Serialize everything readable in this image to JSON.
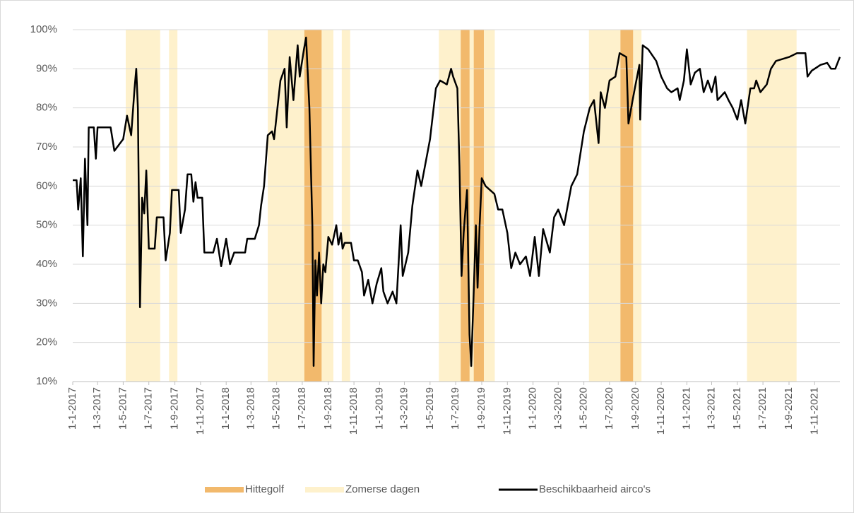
{
  "chart_data": {
    "type": "line",
    "xlim": [
      "1-1-2017",
      "31-12-2021"
    ],
    "xticks": [
      "1-1-2017",
      "1-3-2017",
      "1-5-2017",
      "1-7-2017",
      "1-9-2017",
      "1-11-2017",
      "1-1-2018",
      "1-3-2018",
      "1-5-2018",
      "1-7-2018",
      "1-9-2018",
      "1-11-2018",
      "1-1-2019",
      "1-3-2019",
      "1-5-2019",
      "1-7-2019",
      "1-9-2019",
      "1-11-2019",
      "1-1-2020",
      "1-3-2020",
      "1-5-2020",
      "1-7-2020",
      "1-9-2020",
      "1-11-2020",
      "1-1-2021",
      "1-3-2021",
      "1-5-2021",
      "1-7-2021",
      "1-9-2021",
      "1-11-2021"
    ],
    "ylim": [
      10,
      100
    ],
    "yticks": [
      {
        "value": 10,
        "label": "10%"
      },
      {
        "value": 20,
        "label": "20%"
      },
      {
        "value": 30,
        "label": "30%"
      },
      {
        "value": 40,
        "label": "40%"
      },
      {
        "value": 50,
        "label": "50%"
      },
      {
        "value": 60,
        "label": "60%"
      },
      {
        "value": 70,
        "label": "70%"
      },
      {
        "value": 80,
        "label": "80%"
      },
      {
        "value": 90,
        "label": "90%"
      },
      {
        "value": 100,
        "label": "100%"
      }
    ],
    "grid": true,
    "legend": "bottom",
    "series": [
      {
        "name": "Hittegolf",
        "color": "#f2b96c",
        "periods": [
          [
            "6-7-2018",
            "16-8-2018"
          ],
          [
            "13-7-2019",
            "3-8-2019"
          ],
          [
            "13-8-2019",
            "6-9-2019"
          ],
          [
            "27-7-2020",
            "26-8-2020"
          ]
        ]
      },
      {
        "name": "Zomerse dagen",
        "color": "#fef1cc",
        "periods": [
          [
            "7-5-2017",
            "28-7-2017"
          ],
          [
            "18-8-2017",
            "7-9-2017"
          ],
          [
            "10-4-2018",
            "13-9-2018"
          ],
          [
            "3-10-2018",
            "23-10-2018"
          ],
          [
            "22-5-2019",
            "2-10-2019"
          ],
          [
            "13-5-2020",
            "15-9-2020"
          ],
          [
            "24-5-2021",
            "19-9-2021"
          ]
        ]
      },
      {
        "name": "Beschikbaarheid airco's",
        "color": "#000000",
        "x": [
          "1-1-2017",
          "10-1-2017",
          "14-1-2017",
          "20-1-2017",
          "25-1-2017",
          "30-1-2017",
          "5-2-2017",
          "8-2-2017",
          "20-2-2017",
          "25-2-2017",
          "1-3-2017",
          "1-4-2017",
          "10-4-2017",
          "1-5-2017",
          "10-5-2017",
          "20-5-2017",
          "28-5-2017",
          "1-6-2017",
          "5-6-2017",
          "10-6-2017",
          "15-6-2017",
          "20-6-2017",
          "25-6-2017",
          "1-7-2017",
          "15-7-2017",
          "20-7-2017",
          "5-8-2017",
          "10-8-2017",
          "20-8-2017",
          "25-8-2017",
          "10-9-2017",
          "15-9-2017",
          "25-9-2017",
          "1-10-2017",
          "10-10-2017",
          "15-10-2017",
          "20-10-2017",
          "25-10-2017",
          "5-11-2017",
          "10-11-2017",
          "1-12-2017",
          "10-12-2017",
          "20-12-2017",
          "1-1-2018",
          "10-1-2018",
          "20-1-2018",
          "1-2-2018",
          "15-2-2018",
          "20-2-2018",
          "10-3-2018",
          "20-3-2018",
          "25-3-2018",
          "1-4-2018",
          "10-4-2018",
          "20-4-2018",
          "25-4-2018",
          "10-5-2018",
          "20-5-2018",
          "25-5-2018",
          "1-6-2018",
          "10-6-2018",
          "20-6-2018",
          "25-6-2018",
          "5-7-2018",
          "10-7-2018",
          "18-7-2018",
          "25-7-2018",
          "28-7-2018",
          "1-8-2018",
          "5-8-2018",
          "10-8-2018",
          "15-8-2018",
          "20-8-2018",
          "25-8-2018",
          "1-9-2018",
          "10-9-2018",
          "20-9-2018",
          "25-9-2018",
          "1-10-2018",
          "5-10-2018",
          "10-10-2018",
          "25-10-2018",
          "1-11-2018",
          "10-11-2018",
          "20-11-2018",
          "25-11-2018",
          "5-12-2018",
          "15-12-2018",
          "25-12-2018",
          "5-1-2019",
          "10-1-2019",
          "20-1-2019",
          "1-2-2019",
          "10-2-2019",
          "20-2-2019",
          "25-2-2019",
          "10-3-2019",
          "20-3-2019",
          "1-4-2019",
          "10-4-2019",
          "1-5-2019",
          "15-5-2019",
          "25-5-2019",
          "10-6-2019",
          "20-6-2019",
          "25-6-2019",
          "5-7-2019",
          "10-7-2019",
          "15-7-2019",
          "20-7-2019",
          "25-7-2019",
          "28-7-2019",
          "3-8-2019",
          "7-8-2019",
          "12-8-2019",
          "18-8-2019",
          "22-8-2019",
          "27-8-2019",
          "1-9-2019",
          "10-9-2019",
          "1-10-2019",
          "10-10-2019",
          "20-10-2019",
          "1-11-2019",
          "10-11-2019",
          "20-11-2019",
          "1-12-2019",
          "15-12-2019",
          "25-12-2019",
          "5-1-2020",
          "15-1-2020",
          "25-1-2020",
          "10-2-2020",
          "20-2-2020",
          "1-3-2020",
          "15-3-2020",
          "1-4-2020",
          "15-4-2020",
          "1-5-2020",
          "15-5-2020",
          "25-5-2020",
          "5-6-2020",
          "10-6-2020",
          "20-6-2020",
          "1-7-2020",
          "15-7-2020",
          "25-7-2020",
          "10-8-2020",
          "15-8-2020",
          "25-8-2020",
          "1-9-2020",
          "10-9-2020",
          "12-9-2020",
          "18-9-2020",
          "1-10-2020",
          "20-10-2020",
          "1-11-2020",
          "15-11-2020",
          "25-11-2020",
          "10-12-2020",
          "15-12-2020",
          "25-12-2020",
          "1-1-2021",
          "10-1-2021",
          "20-1-2021",
          "1-2-2021",
          "10-2-2021",
          "20-2-2021",
          "1-3-2021",
          "10-3-2021",
          "15-3-2021",
          "1-4-2021",
          "10-4-2021",
          "20-4-2021",
          "1-5-2021",
          "10-5-2021",
          "20-5-2021",
          "1-6-2021",
          "10-6-2021",
          "15-6-2021",
          "25-6-2021",
          "10-7-2021",
          "20-7-2021",
          "1-8-2021",
          "1-9-2021",
          "20-9-2021",
          "10-10-2021",
          "15-10-2021",
          "25-10-2021",
          "1-11-2021",
          "15-11-2021",
          "1-12-2021",
          "10-12-2021",
          "20-12-2021",
          "31-12-2021"
        ],
        "values": [
          61.5,
          61.5,
          54,
          62,
          42,
          67,
          50,
          75,
          75,
          67,
          75,
          75,
          69,
          72,
          78,
          73,
          85,
          90,
          80,
          29,
          57,
          53,
          64,
          44,
          44,
          52,
          52,
          41,
          48,
          59,
          59,
          48,
          54,
          63,
          63,
          56,
          61,
          57,
          57,
          43,
          43,
          46.5,
          39.5,
          46.5,
          40,
          43,
          43,
          43,
          46.5,
          46.5,
          50,
          55,
          60,
          73,
          74,
          72,
          87,
          90,
          75,
          93,
          82,
          96,
          88,
          95,
          98,
          80,
          50,
          14,
          41,
          32,
          43,
          30,
          40,
          38,
          47,
          45,
          50,
          45,
          48,
          44,
          45.5,
          45.5,
          41,
          41,
          38,
          32,
          36,
          30,
          35,
          39,
          33,
          30,
          33,
          30,
          50,
          37,
          43,
          55,
          64,
          60,
          72,
          85,
          87,
          86,
          90,
          88,
          85,
          65,
          37,
          48,
          55,
          59,
          22,
          14,
          30,
          50,
          34,
          50,
          62,
          60,
          58,
          54,
          54,
          48,
          39,
          43,
          40,
          42,
          37,
          47,
          37,
          49,
          43,
          52,
          54,
          50,
          60,
          63,
          74,
          80,
          82,
          71,
          84,
          80,
          87,
          88,
          94,
          93,
          76,
          82,
          86,
          91,
          77,
          96,
          95,
          92,
          88,
          85,
          84,
          85,
          82,
          87,
          95,
          86,
          89,
          90,
          84,
          87,
          84,
          88,
          82,
          84,
          82,
          80,
          77,
          82,
          76,
          85,
          85,
          87,
          84,
          86,
          90,
          92,
          93,
          94,
          94,
          88,
          89.5,
          90,
          91,
          91.5,
          90,
          90,
          93
        ]
      }
    ]
  }
}
